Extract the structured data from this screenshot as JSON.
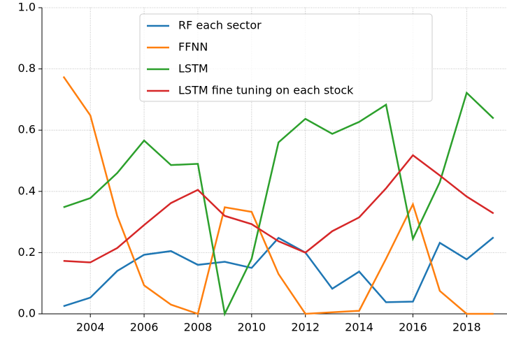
{
  "chart_data": {
    "type": "line",
    "x": [
      2003,
      2004,
      2005,
      2006,
      2007,
      2008,
      2009,
      2010,
      2011,
      2012,
      2013,
      2014,
      2015,
      2016,
      2017,
      2018,
      2019
    ],
    "series": [
      {
        "name": "RF each sector",
        "color": "#1f77b4",
        "values": [
          0.025,
          0.053,
          0.14,
          0.193,
          0.205,
          0.16,
          0.17,
          0.15,
          0.248,
          0.2,
          0.082,
          0.138,
          0.038,
          0.04,
          0.232,
          0.178,
          0.25
        ]
      },
      {
        "name": "FFNN",
        "color": "#ff7f0e",
        "values": [
          0.775,
          0.648,
          0.32,
          0.093,
          0.03,
          0.0,
          0.348,
          0.333,
          0.13,
          0.0,
          0.005,
          0.01,
          0.18,
          0.358,
          0.075,
          0.0,
          0.0
        ]
      },
      {
        "name": "LSTM",
        "color": "#2ca02c",
        "values": [
          0.348,
          0.378,
          0.46,
          0.566,
          0.486,
          0.49,
          0.0,
          0.18,
          0.56,
          0.637,
          0.588,
          0.627,
          0.683,
          0.245,
          0.43,
          0.722,
          0.638
        ]
      },
      {
        "name": "LSTM fine tuning on each stock",
        "color": "#d62728",
        "values": [
          0.173,
          0.168,
          0.215,
          0.29,
          0.362,
          0.405,
          0.32,
          0.293,
          0.237,
          0.2,
          0.27,
          0.315,
          0.41,
          0.518,
          0.452,
          0.383,
          0.328
        ]
      }
    ],
    "xlim": [
      2002.2,
      2019.5
    ],
    "xticks": [
      2004,
      2006,
      2008,
      2010,
      2012,
      2014,
      2016,
      2018
    ],
    "ylim": [
      0,
      1
    ],
    "yticks": [
      {
        "value": 0,
        "label": "0.0"
      },
      0.2,
      0.4,
      0.6,
      0.8,
      {
        "value": 1,
        "label": "1.0"
      }
    ],
    "grid": true,
    "legend": "upper center"
  }
}
